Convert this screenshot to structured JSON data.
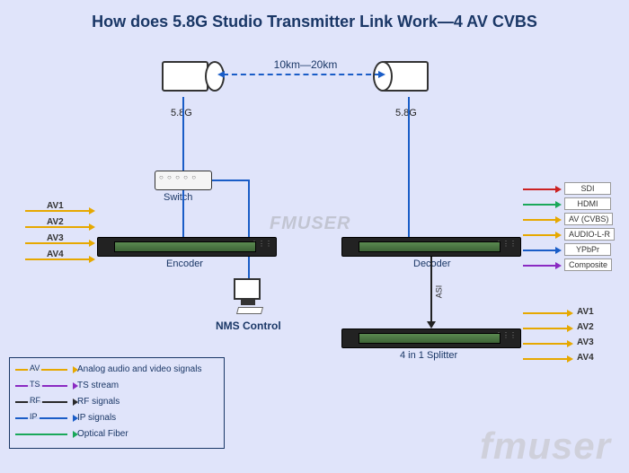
{
  "title": "How does 5.8G Studio Transmitter Link Work—4 AV CVBS",
  "range": "10km—20km",
  "freq": "5.8G",
  "labels": {
    "switch": "Switch",
    "encoder": "Encoder",
    "decoder": "Decoder",
    "splitter": "4 in 1 Splitter",
    "nms": "NMS Control",
    "asi": "ASI"
  },
  "av_inputs": [
    "AV1",
    "AV2",
    "AV3",
    "AV4"
  ],
  "decoder_outputs": [
    "SDI",
    "HDMI",
    "AV (CVBS)",
    "AUDIO-L-R",
    "YPbPr",
    "Composite"
  ],
  "splitter_outputs": [
    "AV1",
    "AV2",
    "AV3",
    "AV4"
  ],
  "legend": [
    {
      "tag": "AV",
      "color": "#e6a800",
      "desc": "Analog audio and video signals"
    },
    {
      "tag": "TS",
      "color": "#8a2ac2",
      "desc": "TS stream"
    },
    {
      "tag": "RF",
      "color": "#2a2a2a",
      "desc": "RF signals"
    },
    {
      "tag": "IP",
      "color": "#1a5dc7",
      "desc": "IP signals"
    },
    {
      "tag": "",
      "color": "#1aa85a",
      "desc": "Optical Fiber"
    }
  ],
  "watermark": "FMUSER",
  "logo": "fmuser",
  "colors": {
    "bg": "#e0e4fa",
    "title": "#1a3766",
    "ip": "#1a5dc7",
    "av": "#e6a800"
  }
}
